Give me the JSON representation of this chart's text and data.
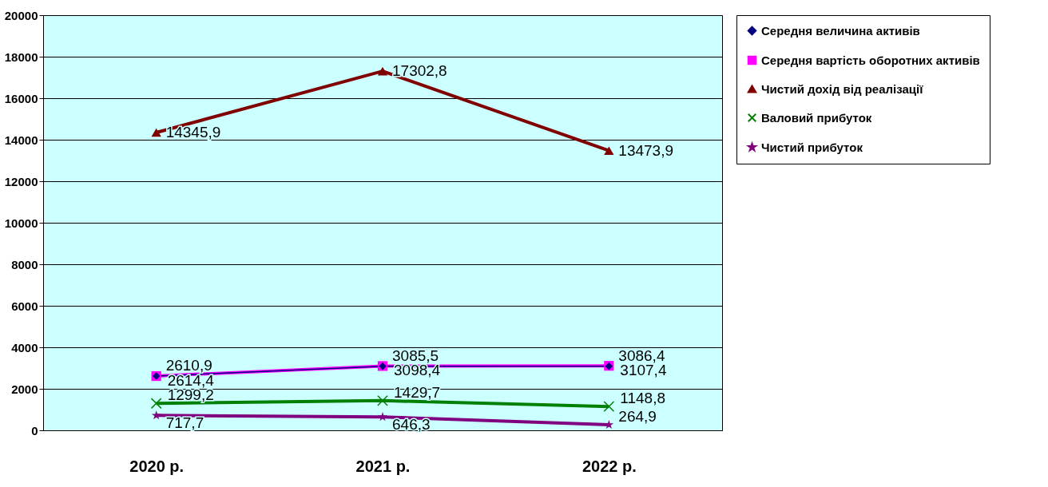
{
  "chart_data": {
    "type": "line",
    "categories": [
      "2020 р.",
      "2021 р.",
      "2022 р."
    ],
    "series": [
      {
        "name": "Середня величина активів",
        "color": "#000080",
        "marker": "diamond",
        "values": [
          2610.9,
          3085.5,
          3086.4
        ],
        "value_labels": [
          "2610,9",
          "3085,5",
          "3086,4"
        ]
      },
      {
        "name": "Середня вартість оборотних активів",
        "color": "#ff00ff",
        "marker": "square",
        "values": [
          2614.4,
          3098.4,
          3107.4
        ],
        "value_labels": [
          "2614,4",
          "3098,4",
          "3107,4"
        ]
      },
      {
        "name": "Чистий дохід від реалізації",
        "color": "#800000",
        "marker": "triangle",
        "values": [
          14345.9,
          17302.8,
          13473.9
        ],
        "value_labels": [
          "14345,9",
          "17302,8",
          "13473,9"
        ]
      },
      {
        "name": "Валовий прибуток",
        "color": "#008000",
        "marker": "cross",
        "values": [
          1299.2,
          1429.7,
          1148.8
        ],
        "value_labels": [
          "1299,2",
          "1429,7",
          "1148,8"
        ]
      },
      {
        "name": "Чистий прибуток",
        "color": "#800080",
        "marker": "star",
        "values": [
          717.7,
          646.3,
          264.9
        ],
        "value_labels": [
          "717,7",
          "646,3",
          "264,9"
        ]
      }
    ],
    "ylim": [
      0,
      20000
    ],
    "yticks": [
      0,
      2000,
      4000,
      6000,
      8000,
      10000,
      12000,
      14000,
      16000,
      18000,
      20000
    ],
    "grid": "y",
    "legend": "right",
    "line_style": "solid"
  }
}
